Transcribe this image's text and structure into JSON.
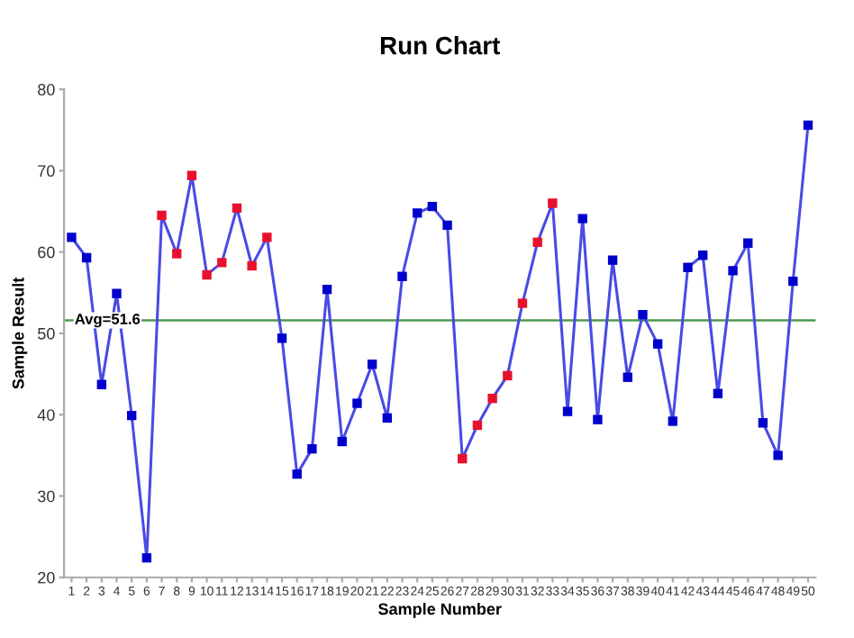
{
  "chart_data": {
    "type": "line",
    "title": "Run Chart",
    "xlabel": "Sample Number",
    "ylabel": "Sample Result",
    "categories": [
      "1",
      "2",
      "3",
      "4",
      "5",
      "6",
      "7",
      "8",
      "9",
      "10",
      "11",
      "12",
      "13",
      "14",
      "15",
      "16",
      "17",
      "18",
      "19",
      "20",
      "21",
      "22",
      "23",
      "24",
      "25",
      "26",
      "27",
      "28",
      "29",
      "30",
      "31",
      "32",
      "33",
      "34",
      "35",
      "36",
      "37",
      "38",
      "39",
      "40",
      "41",
      "42",
      "43",
      "44",
      "45",
      "46",
      "47",
      "48",
      "49",
      "50"
    ],
    "series": [
      {
        "color": "#4a4ae6",
        "values": [
          61.8,
          59.3,
          43.7,
          54.9,
          39.9,
          22.4,
          64.5,
          59.8,
          69.4,
          57.2,
          58.7,
          65.4,
          58.3,
          61.8,
          49.4,
          32.7,
          35.8,
          55.4,
          36.7,
          41.4,
          46.2,
          39.6,
          57.0,
          64.8,
          65.6,
          63.3,
          34.6,
          38.7,
          42.0,
          44.8,
          53.7,
          61.2,
          66.0,
          40.4,
          64.1,
          39.4,
          59.0,
          44.6,
          52.3,
          48.7,
          39.2,
          58.1,
          59.6,
          42.6,
          57.7,
          61.1,
          39.0,
          35.0,
          56.4,
          75.6
        ],
        "colors": [
          "#0000cc",
          "#0000cc",
          "#0000cc",
          "#0000cc",
          "#0000cc",
          "#0000cc",
          "#e8112d",
          "#e8112d",
          "#e8112d",
          "#e8112d",
          "#e8112d",
          "#e8112d",
          "#e8112d",
          "#e8112d",
          "#0000cc",
          "#0000cc",
          "#0000cc",
          "#0000cc",
          "#0000cc",
          "#0000cc",
          "#0000cc",
          "#0000cc",
          "#0000cc",
          "#0000cc",
          "#0000cc",
          "#0000cc",
          "#e8112d",
          "#e8112d",
          "#e8112d",
          "#e8112d",
          "#e8112d",
          "#e8112d",
          "#e8112d",
          "#0000cc",
          "#0000cc",
          "#0000cc",
          "#0000cc",
          "#0000cc",
          "#0000cc",
          "#0000cc",
          "#0000cc",
          "#0000cc",
          "#0000cc",
          "#0000cc",
          "#0000cc",
          "#0000cc",
          "#0000cc",
          "#0000cc",
          "#0000cc",
          "#0000cc"
        ]
      }
    ],
    "ylim": [
      20,
      80
    ],
    "yticks": [
      20,
      30,
      40,
      50,
      60,
      70,
      80
    ],
    "ref_lines": [
      {
        "axis": "y",
        "value": 51.6,
        "label": "Avg=51.6",
        "color": "#4c9a4c"
      }
    ],
    "marker": "square",
    "line_style": "solid",
    "grid": false,
    "legend": false
  }
}
